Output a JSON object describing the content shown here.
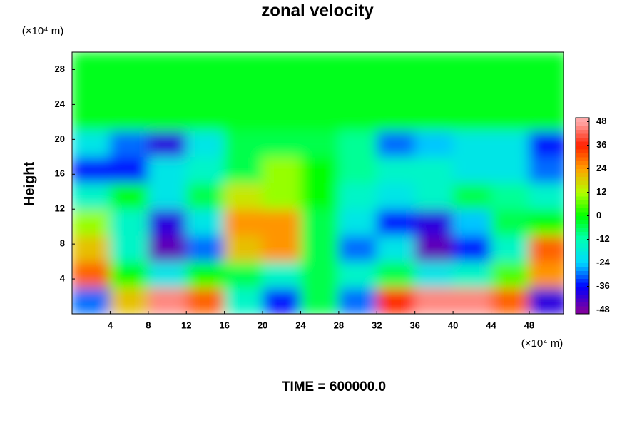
{
  "chart_data": {
    "type": "contour",
    "title": "zonal velocity",
    "y_label": "Height",
    "y_unit": "(×10⁴ m)",
    "x_unit": "(×10⁴ m)",
    "footnote": "TIME = 600000.0",
    "xlim": [
      0,
      51.6
    ],
    "ylim": [
      0,
      30
    ],
    "xticks": [
      4,
      8,
      12,
      16,
      20,
      24,
      28,
      32,
      36,
      40,
      44,
      48
    ],
    "yticks": [
      4,
      8,
      12,
      16,
      20,
      24,
      28
    ],
    "x_edges": [
      0,
      4,
      8,
      12,
      16,
      20,
      24,
      28,
      32,
      36,
      40,
      44,
      48,
      52
    ],
    "y_edges": [
      0,
      3,
      6,
      9,
      12,
      15,
      18,
      21,
      24,
      27,
      30
    ],
    "z": [
      [
        -30,
        20,
        45,
        30,
        -15,
        -35,
        -5,
        -30,
        35,
        45,
        45,
        30,
        -40
      ],
      [
        30,
        0,
        -20,
        0,
        -5,
        -15,
        -5,
        -15,
        -5,
        -20,
        -15,
        5,
        25
      ],
      [
        20,
        -15,
        -45,
        -30,
        20,
        25,
        -5,
        -30,
        -20,
        -45,
        -35,
        -15,
        30
      ],
      [
        10,
        -15,
        -40,
        -20,
        25,
        25,
        -5,
        -20,
        -35,
        -40,
        -25,
        -5,
        0
      ],
      [
        -15,
        0,
        -20,
        -5,
        15,
        10,
        0,
        -15,
        -20,
        -15,
        -5,
        -10,
        -15
      ],
      [
        -35,
        -35,
        -20,
        -15,
        -5,
        10,
        0,
        -10,
        -15,
        -15,
        -20,
        -20,
        -30
      ],
      [
        -20,
        -30,
        -40,
        -20,
        -5,
        -5,
        -5,
        -10,
        -30,
        -25,
        -20,
        -20,
        -35
      ],
      [
        -2,
        -2,
        -2,
        -2,
        -2,
        -2,
        -2,
        -2,
        -2,
        -2,
        -2,
        -2,
        -2
      ],
      [
        -2,
        -2,
        -2,
        -2,
        -2,
        -2,
        -2,
        -2,
        -2,
        -2,
        -2,
        -2,
        -2
      ],
      [
        -2,
        -2,
        -2,
        -2,
        -2,
        -2,
        -2,
        -2,
        -2,
        -2,
        -2,
        -2,
        -2
      ]
    ],
    "clim": [
      -50,
      50
    ],
    "colorbar_ticks": [
      -48,
      -36,
      -24,
      -12,
      0,
      12,
      24,
      36,
      48
    ],
    "colorscale": [
      {
        "value": -48,
        "color": "#7f00a0"
      },
      {
        "value": -36,
        "color": "#0000ff"
      },
      {
        "value": -24,
        "color": "#00d8ff"
      },
      {
        "value": -12,
        "color": "#00ffb4"
      },
      {
        "value": 0,
        "color": "#00ff00"
      },
      {
        "value": 12,
        "color": "#b4ff00"
      },
      {
        "value": 24,
        "color": "#ffa000"
      },
      {
        "value": 36,
        "color": "#ff2000"
      },
      {
        "value": 48,
        "color": "#ffa8a8"
      }
    ]
  }
}
